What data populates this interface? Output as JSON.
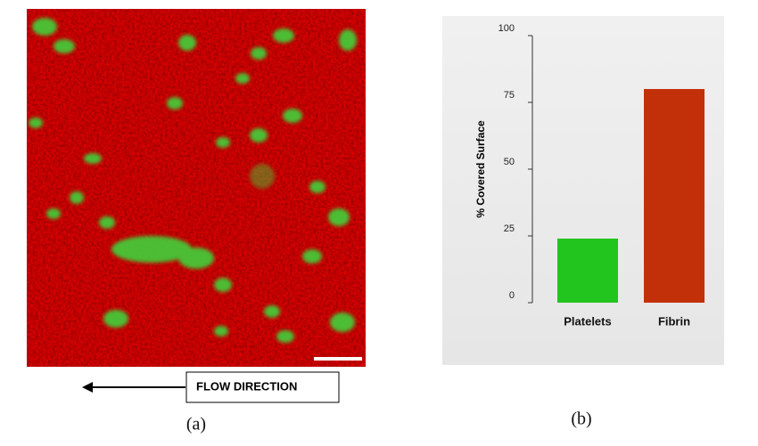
{
  "panels": {
    "a": {
      "label": "(a)",
      "annotation": "FLOW DIRECTION"
    },
    "b": {
      "label": "(b)"
    }
  },
  "chart_data": {
    "type": "bar",
    "ylabel": "% Covered Surface",
    "categories": [
      "Platelets",
      "Fibrin"
    ],
    "values": [
      24,
      80
    ],
    "colors": [
      "#22c41e",
      "#c2300a"
    ],
    "ylim": [
      0,
      100
    ],
    "yticks": [
      0,
      25,
      50,
      75,
      100
    ],
    "grid": false
  }
}
